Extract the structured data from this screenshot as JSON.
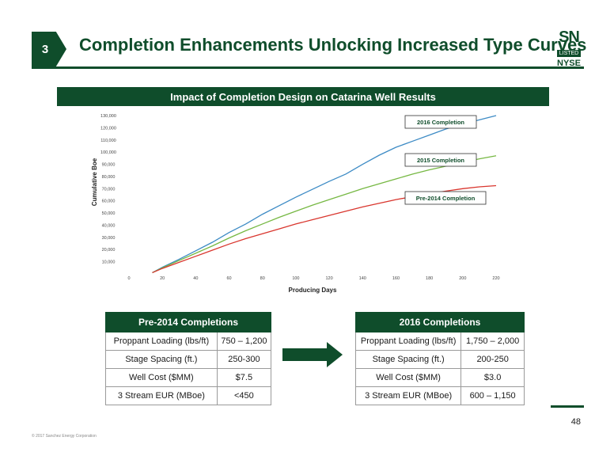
{
  "header": {
    "section_number": "3",
    "title": "Completion Enhancements Unlocking Increased Type Curves",
    "logo": {
      "ticker": "SN",
      "badge": "LISTED",
      "exchange": "NYSE"
    }
  },
  "chart_banner": "Impact of Completion Design on Catarina Well Results",
  "chart_data": {
    "type": "line",
    "title": "Impact of Completion Design on Catarina Well Results",
    "xlabel": "Producing Days",
    "ylabel": "Cumulative Boe",
    "xlim": [
      0,
      220
    ],
    "ylim": [
      0,
      130000
    ],
    "xticks": [
      0,
      20,
      40,
      60,
      80,
      100,
      120,
      140,
      160,
      180,
      200,
      220
    ],
    "yticks": [
      10000,
      20000,
      30000,
      40000,
      50000,
      60000,
      70000,
      80000,
      90000,
      100000,
      110000,
      120000,
      130000
    ],
    "xtick_labels": [
      "0",
      "20",
      "40",
      "60",
      "80",
      "100",
      "120",
      "140",
      "160",
      "180",
      "200",
      "220"
    ],
    "ytick_labels": [
      "10,000",
      "20,000",
      "30,000",
      "40,000",
      "50,000",
      "60,000",
      "70,000",
      "80,000",
      "90,000",
      "100,000",
      "110,000",
      "120,000",
      "130,000"
    ],
    "grid": false,
    "legend": "annotation boxes",
    "series": [
      {
        "name": "2016 Completion",
        "color": "#3d8bc5",
        "x": [
          14,
          20,
          30,
          40,
          50,
          60,
          70,
          80,
          90,
          100,
          110,
          120,
          130,
          140,
          150,
          160,
          170,
          180,
          190,
          200,
          210,
          220
        ],
        "y": [
          1000,
          5500,
          12000,
          19000,
          26000,
          34000,
          41000,
          49000,
          56000,
          63000,
          69500,
          76000,
          82000,
          90000,
          97500,
          104000,
          109000,
          114000,
          119000,
          123000,
          126500,
          130000
        ]
      },
      {
        "name": "2015 Completion",
        "color": "#76b843",
        "x": [
          14,
          20,
          30,
          40,
          50,
          60,
          70,
          80,
          90,
          100,
          110,
          120,
          130,
          140,
          150,
          160,
          170,
          180,
          190,
          200,
          210,
          220
        ],
        "y": [
          1000,
          5000,
          11000,
          17000,
          23000,
          29500,
          35500,
          41000,
          46500,
          51500,
          56500,
          61000,
          65500,
          70000,
          74000,
          78000,
          82000,
          85500,
          88500,
          91500,
          94500,
          97000
        ]
      },
      {
        "name": "Pre-2014 Completion",
        "color": "#d9362e",
        "x": [
          14,
          20,
          30,
          40,
          50,
          60,
          70,
          80,
          90,
          100,
          110,
          120,
          130,
          140,
          150,
          160,
          170,
          180,
          190,
          200,
          210,
          220
        ],
        "y": [
          1000,
          4500,
          9500,
          14500,
          19500,
          24500,
          29000,
          33000,
          37000,
          41000,
          44500,
          48000,
          51500,
          55000,
          58000,
          61000,
          63500,
          66000,
          68000,
          70000,
          71500,
          72500
        ]
      }
    ]
  },
  "tables": {
    "pre2014": {
      "title": "Pre-2014 Completions",
      "rows": [
        {
          "label": "Proppant Loading (lbs/ft)",
          "value": "750 – 1,200"
        },
        {
          "label": "Stage Spacing (ft.)",
          "value": "250-300"
        },
        {
          "label": "Well Cost ($MM)",
          "value": "$7.5"
        },
        {
          "label": "3 Stream EUR (MBoe)",
          "value": "<450"
        }
      ]
    },
    "c2016": {
      "title": "2016 Completions",
      "rows": [
        {
          "label": "Proppant Loading (lbs/ft)",
          "value": "1,750 – 2,000"
        },
        {
          "label": "Stage Spacing (ft.)",
          "value": "200-250"
        },
        {
          "label": "Well Cost ($MM)",
          "value": "$3.0"
        },
        {
          "label": "3 Stream EUR (MBoe)",
          "value": "600 – 1,150"
        }
      ]
    }
  },
  "footer": {
    "page_number": "48",
    "copyright": "© 2017 Sanchez Energy Corporation"
  },
  "colors": {
    "brand_green": "#0f4d2b"
  }
}
